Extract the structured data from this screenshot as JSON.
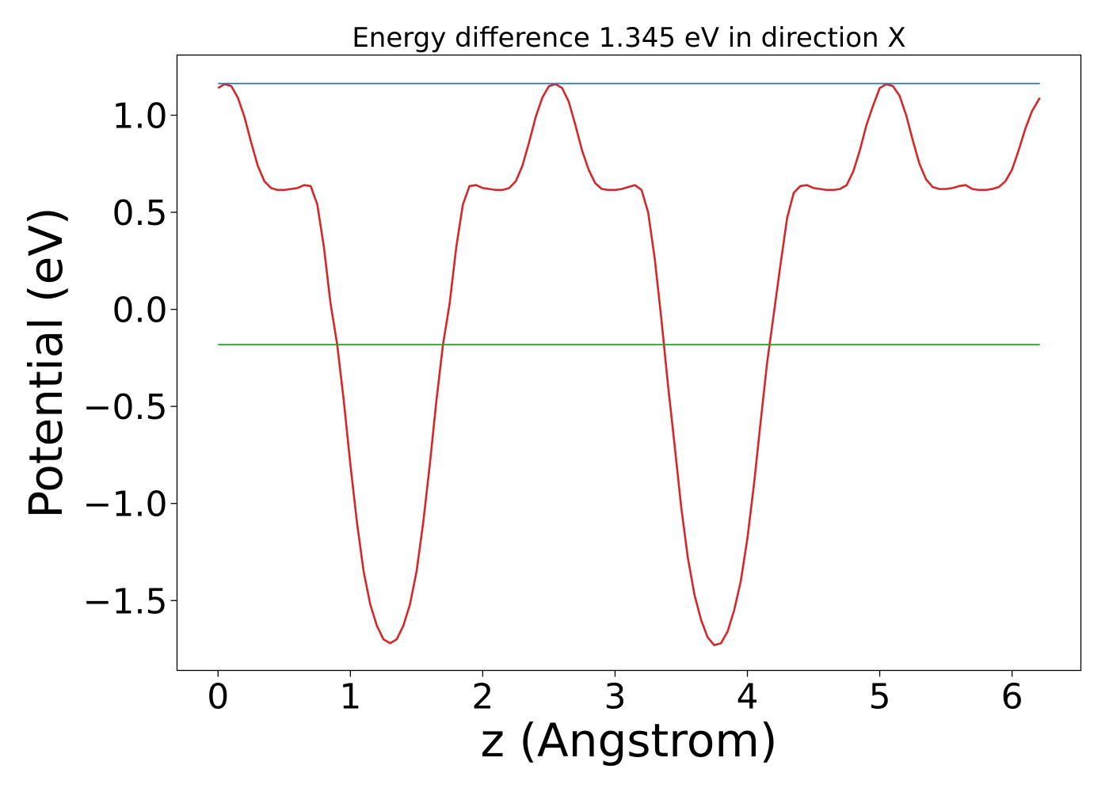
{
  "chart_data": {
    "type": "line",
    "title": "Energy difference 1.345 eV in direction X",
    "xlabel": "z (Angstrom)",
    "ylabel": "Potential (eV)",
    "xlim": [
      -0.31,
      6.52
    ],
    "ylim": [
      -1.86,
      1.31
    ],
    "xticks": [
      0,
      1,
      2,
      3,
      4,
      5,
      6
    ],
    "xtick_labels": [
      "0",
      "1",
      "2",
      "3",
      "4",
      "5",
      "6"
    ],
    "yticks": [
      -1.5,
      -1.0,
      -0.5,
      0.0,
      0.5,
      1.0
    ],
    "ytick_labels": [
      "−1.5",
      "−1.0",
      "−0.5",
      "0.0",
      "0.5",
      "1.0"
    ],
    "grid": false,
    "series": [
      {
        "color": "#d62728",
        "x": [
          0.0,
          0.05,
          0.1,
          0.15,
          0.2,
          0.25,
          0.3,
          0.35,
          0.4,
          0.45,
          0.5,
          0.55,
          0.6,
          0.65,
          0.7,
          0.75,
          0.8,
          0.85,
          0.9,
          0.95,
          1.0,
          1.05,
          1.1,
          1.15,
          1.2,
          1.25,
          1.3,
          1.35,
          1.4,
          1.45,
          1.5,
          1.55,
          1.6,
          1.65,
          1.7,
          1.75,
          1.8,
          1.85,
          1.9,
          1.95,
          2.0,
          2.05,
          2.1,
          2.15,
          2.2,
          2.25,
          2.3,
          2.35,
          2.4,
          2.45,
          2.5,
          2.55,
          2.6,
          2.65,
          2.7,
          2.75,
          2.8,
          2.85,
          2.9,
          2.95,
          3.0,
          3.05,
          3.1,
          3.15,
          3.2,
          3.25,
          3.3,
          3.35,
          3.4,
          3.45,
          3.5,
          3.55,
          3.6,
          3.65,
          3.7,
          3.75,
          3.8,
          3.85,
          3.9,
          3.95,
          4.0,
          4.05,
          4.1,
          4.15,
          4.2,
          4.25,
          4.3,
          4.35,
          4.4,
          4.45,
          4.5,
          4.55,
          4.6,
          4.65,
          4.7,
          4.75,
          4.8,
          4.85,
          4.9,
          4.95,
          5.0,
          5.05,
          5.1,
          5.15,
          5.2,
          5.25,
          5.3,
          5.35,
          5.4,
          5.45,
          5.5,
          5.55,
          5.6,
          5.65,
          5.7,
          5.75,
          5.8,
          5.85,
          5.9,
          5.95,
          6.0,
          6.05,
          6.1,
          6.15,
          6.21
        ],
        "y": [
          1.14,
          1.16,
          1.15,
          1.09,
          0.99,
          0.86,
          0.74,
          0.66,
          0.625,
          0.615,
          0.615,
          0.62,
          0.625,
          0.64,
          0.635,
          0.54,
          0.32,
          0.03,
          -0.18,
          -0.47,
          -0.8,
          -1.1,
          -1.35,
          -1.52,
          -1.63,
          -1.7,
          -1.72,
          -1.7,
          -1.63,
          -1.52,
          -1.35,
          -1.1,
          -0.8,
          -0.47,
          -0.18,
          0.03,
          0.32,
          0.54,
          0.635,
          0.64,
          0.625,
          0.62,
          0.615,
          0.615,
          0.625,
          0.66,
          0.74,
          0.86,
          0.99,
          1.09,
          1.15,
          1.16,
          1.14,
          1.07,
          0.95,
          0.82,
          0.72,
          0.65,
          0.62,
          0.615,
          0.615,
          0.62,
          0.63,
          0.64,
          0.615,
          0.5,
          0.26,
          -0.05,
          -0.39,
          -0.7,
          -1.02,
          -1.28,
          -1.47,
          -1.6,
          -1.69,
          -1.73,
          -1.72,
          -1.66,
          -1.55,
          -1.4,
          -1.18,
          -0.9,
          -0.58,
          -0.27,
          -0.02,
          0.23,
          0.47,
          0.6,
          0.635,
          0.64,
          0.625,
          0.62,
          0.615,
          0.615,
          0.62,
          0.64,
          0.71,
          0.82,
          0.95,
          1.05,
          1.14,
          1.16,
          1.15,
          1.1,
          1.0,
          0.87,
          0.75,
          0.67,
          0.63,
          0.62,
          0.62,
          0.625,
          0.635,
          0.64,
          0.62,
          0.615,
          0.615,
          0.62,
          0.63,
          0.66,
          0.72,
          0.82,
          0.93,
          1.02,
          1.09
        ]
      },
      {
        "color": "#1f77b4",
        "x": [
          0.0,
          6.21
        ],
        "y": [
          1.163,
          1.163
        ]
      },
      {
        "color": "#2ca02c",
        "x": [
          0.0,
          6.21
        ],
        "y": [
          -0.182,
          -0.182
        ]
      }
    ]
  }
}
